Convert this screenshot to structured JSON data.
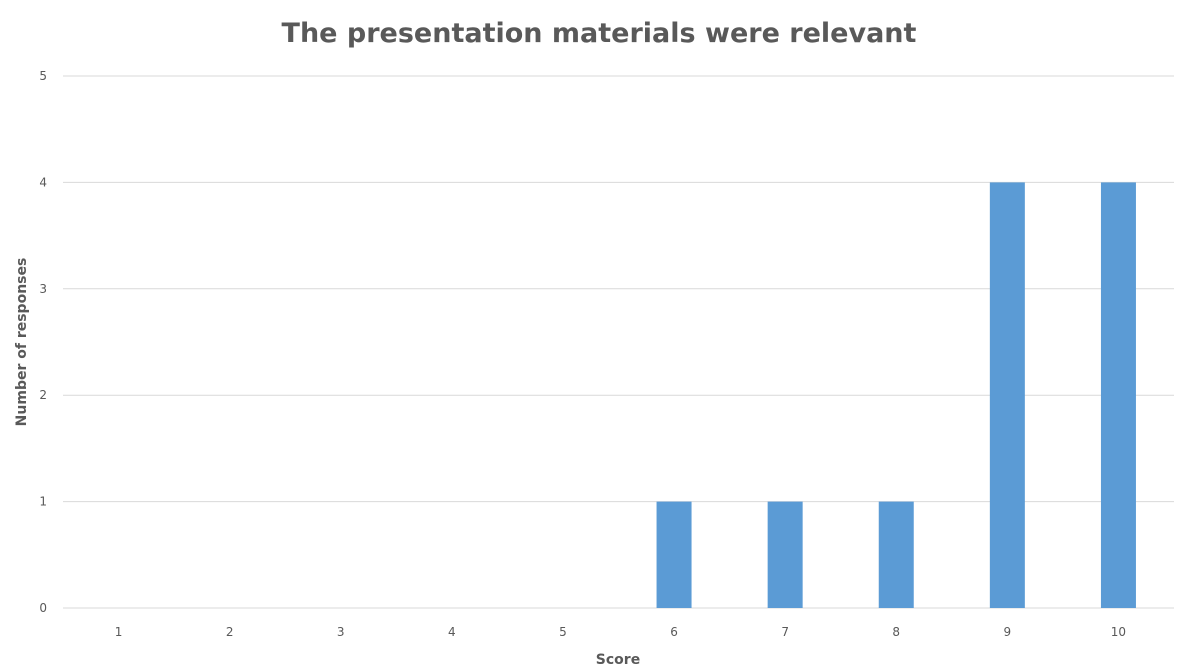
{
  "chart_data": {
    "type": "bar",
    "title": "The presentation materials were relevant",
    "xlabel": "Score",
    "ylabel": "Number of responses",
    "categories": [
      "1",
      "2",
      "3",
      "4",
      "5",
      "6",
      "7",
      "8",
      "9",
      "10"
    ],
    "values": [
      0,
      0,
      0,
      0,
      0,
      1,
      1,
      1,
      4,
      4
    ],
    "ylim": [
      0,
      5
    ],
    "yticks": [
      "0",
      "1",
      "2",
      "3",
      "4",
      "5"
    ],
    "grid": true,
    "legend": "none",
    "bar_color": "#5b9bd5"
  }
}
